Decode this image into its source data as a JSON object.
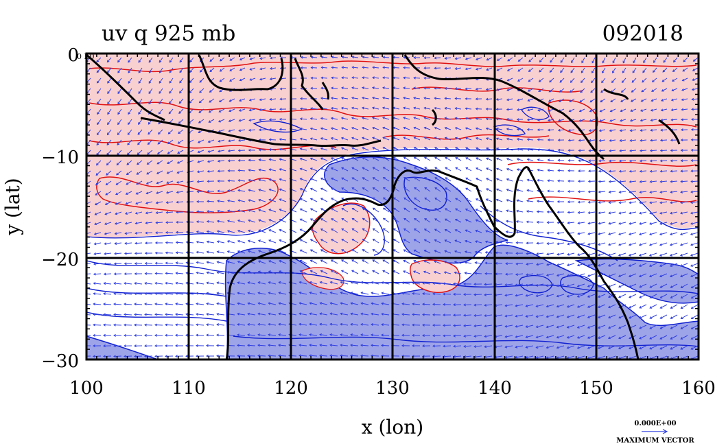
{
  "figure": {
    "title_left": "uv  q  925  mb",
    "title_right": "092018",
    "corner_label": "0 E0",
    "xlabel": "x  (lon)",
    "ylabel": "y  (lat)",
    "x_ticks": [
      "100",
      "110",
      "120",
      "130",
      "140",
      "150",
      "160"
    ],
    "y_ticks": [
      "0",
      "−10",
      "−20",
      "−30"
    ],
    "vector_legend": {
      "magnitude": "0.000E+00",
      "label": "MAXIMUM VECTOR"
    }
  },
  "chart_data": {
    "type": "heatmap",
    "title": "uv  q  925  mb",
    "date_label": "092018",
    "xlabel": "x  (lon)",
    "ylabel": "y  (lat)",
    "xlim": [
      100,
      160
    ],
    "ylim": [
      -30,
      0
    ],
    "x_ticks": [
      100,
      110,
      120,
      130,
      140,
      150,
      160
    ],
    "y_ticks": [
      0,
      -10,
      -20,
      -30
    ],
    "grid": true,
    "colors": {
      "positive_fill": "#f9d0d0",
      "positive_contour": "#e01010",
      "negative_fill": "#9ea4e8",
      "negative_contour": "#1020d0",
      "vectors": "#3040e0",
      "coastline": "#000000"
    }
  }
}
